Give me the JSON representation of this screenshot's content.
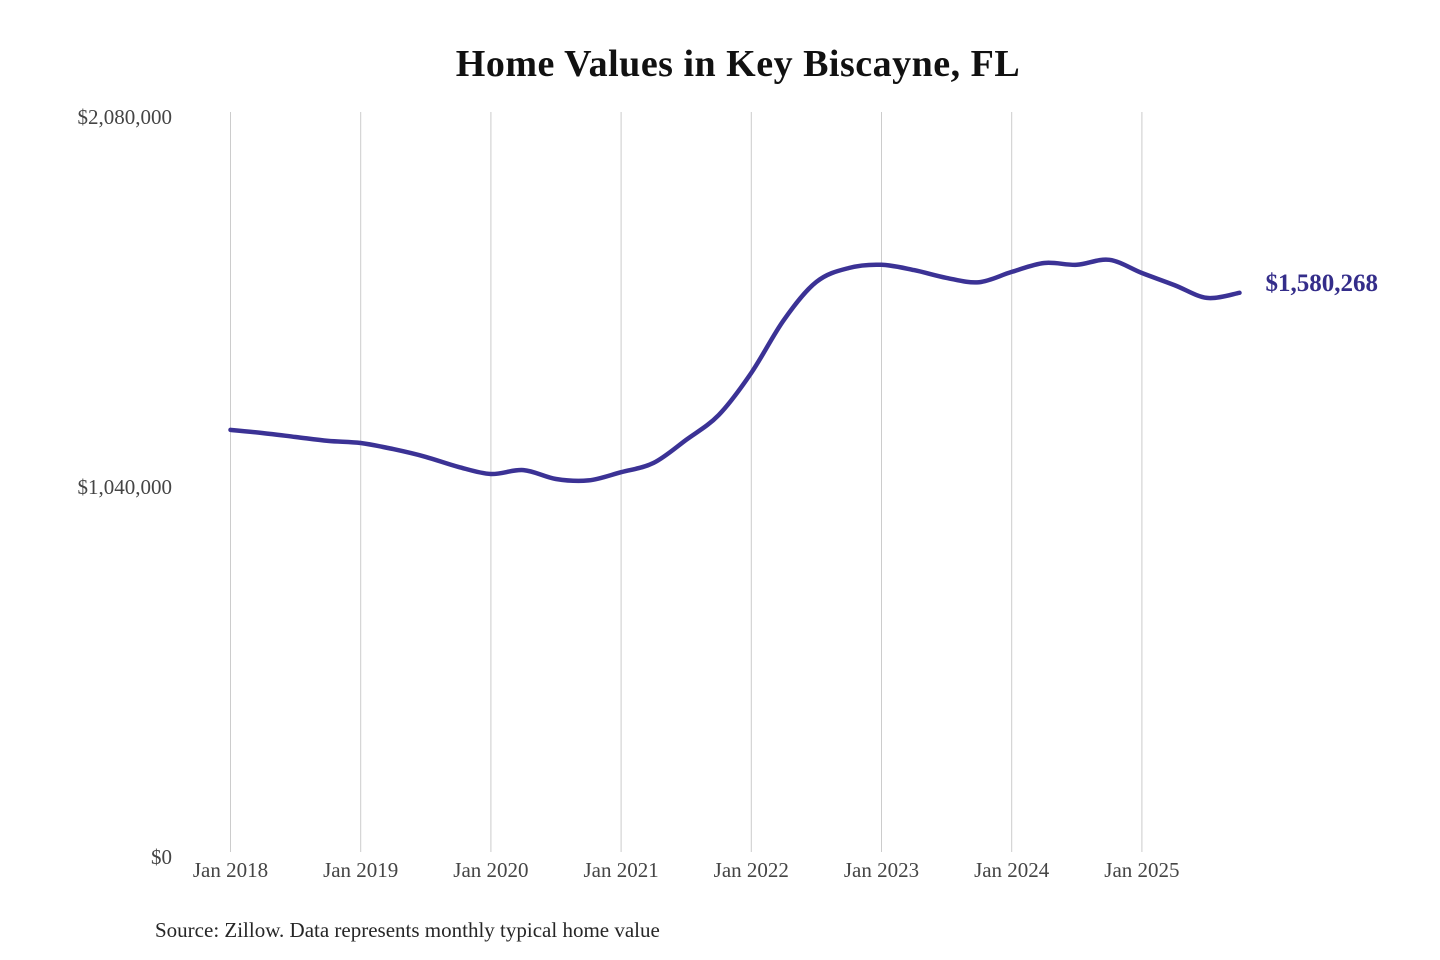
{
  "chart_data": {
    "type": "line",
    "title": "Home Values in Key Biscayne, FL",
    "source": "Source: Zillow. Data represents monthly typical home value",
    "series_name": "Typical home value",
    "x": [
      "2018-01",
      "2018-04",
      "2018-07",
      "2018-10",
      "2019-01",
      "2019-04",
      "2019-07",
      "2019-10",
      "2020-01",
      "2020-04",
      "2020-07",
      "2020-10",
      "2021-01",
      "2021-04",
      "2021-07",
      "2021-10",
      "2022-01",
      "2022-04",
      "2022-07",
      "2022-10",
      "2023-01",
      "2023-04",
      "2023-07",
      "2023-10",
      "2024-01",
      "2024-04",
      "2024-07",
      "2024-10",
      "2025-01",
      "2025-04",
      "2025-07",
      "2025-10"
    ],
    "values": [
      1195000,
      1186000,
      1175000,
      1164000,
      1158000,
      1141000,
      1119000,
      1091000,
      1071000,
      1082000,
      1057000,
      1053000,
      1076000,
      1102000,
      1167000,
      1237000,
      1355000,
      1504000,
      1611000,
      1650000,
      1659000,
      1644000,
      1622000,
      1610000,
      1639000,
      1664000,
      1659000,
      1673000,
      1636000,
      1602000,
      1566000,
      1580268
    ],
    "xticks": [
      "Jan 2018",
      "Jan 2019",
      "Jan 2020",
      "Jan 2021",
      "Jan 2022",
      "Jan 2023",
      "Jan 2024",
      "Jan 2025"
    ],
    "yticks": [
      "$2,080,000",
      "$1,040,000",
      "$0"
    ],
    "ytick_values": [
      2080000,
      1040000,
      0
    ],
    "ylim": [
      0,
      2080000
    ],
    "grid": "vertical-only",
    "legend": "none",
    "annotation": {
      "text": "$1,580,268",
      "value": 1580268,
      "position": "end-of-line"
    },
    "colors": {
      "line": "#3b3295",
      "grid": "#cccccc",
      "axis_text": "#454545",
      "title_text": "#111111",
      "source_text": "#262626",
      "annotation_text": "#342d8a",
      "background": "#ffffff"
    }
  }
}
